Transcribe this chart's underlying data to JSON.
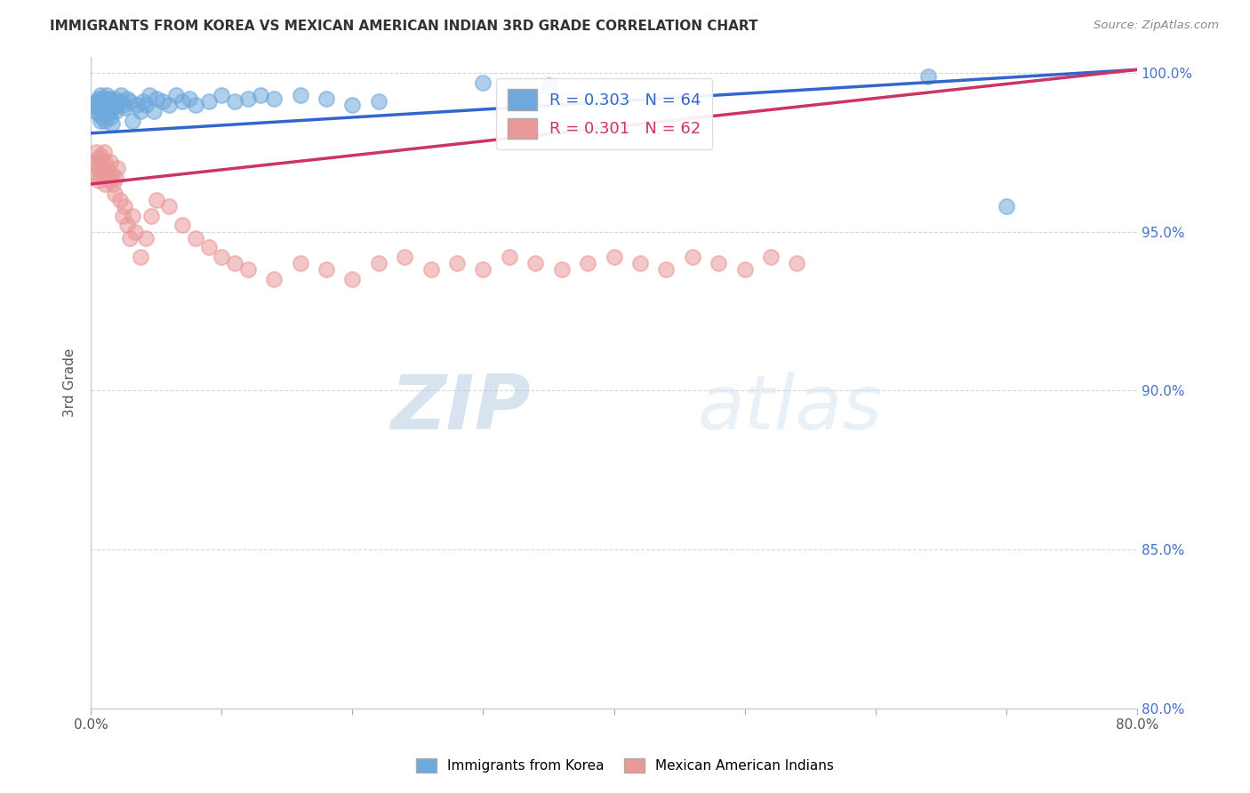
{
  "title": "IMMIGRANTS FROM KOREA VS MEXICAN AMERICAN INDIAN 3RD GRADE CORRELATION CHART",
  "source": "Source: ZipAtlas.com",
  "ylabel": "3rd Grade",
  "x_min": 0.0,
  "x_max": 0.8,
  "y_min": 0.8,
  "y_max": 1.005,
  "x_ticks": [
    0.0,
    0.1,
    0.2,
    0.3,
    0.4,
    0.5,
    0.6,
    0.7,
    0.8
  ],
  "x_tick_labels": [
    "0.0%",
    "",
    "",
    "",
    "",
    "",
    "",
    "",
    "80.0%"
  ],
  "y_ticks": [
    0.8,
    0.85,
    0.9,
    0.95,
    1.0
  ],
  "y_tick_labels": [
    "80.0%",
    "85.0%",
    "90.0%",
    "95.0%",
    "100.0%"
  ],
  "korea_R": 0.303,
  "korea_N": 64,
  "mexican_R": 0.301,
  "mexican_N": 62,
  "korea_color": "#6fa8dc",
  "mexican_color": "#ea9999",
  "korea_line_color": "#3366cc",
  "mexican_line_color": "#cc3366",
  "background_color": "#ffffff",
  "watermark_zip": "ZIP",
  "watermark_atlas": "atlas",
  "korea_line_x0": 0.0,
  "korea_line_y0": 0.981,
  "korea_line_x1": 0.8,
  "korea_line_y1": 1.001,
  "mexican_line_x0": 0.0,
  "mexican_line_y0": 0.965,
  "mexican_line_x1": 0.8,
  "mexican_line_y1": 1.001,
  "korea_x": [
    0.002,
    0.003,
    0.004,
    0.005,
    0.006,
    0.006,
    0.007,
    0.007,
    0.008,
    0.008,
    0.009,
    0.009,
    0.01,
    0.01,
    0.011,
    0.011,
    0.012,
    0.012,
    0.013,
    0.013,
    0.014,
    0.014,
    0.015,
    0.015,
    0.016,
    0.016,
    0.017,
    0.018,
    0.019,
    0.02,
    0.022,
    0.023,
    0.025,
    0.026,
    0.028,
    0.03,
    0.032,
    0.035,
    0.038,
    0.04,
    0.042,
    0.045,
    0.048,
    0.05,
    0.055,
    0.06,
    0.065,
    0.07,
    0.075,
    0.08,
    0.09,
    0.1,
    0.11,
    0.12,
    0.13,
    0.14,
    0.16,
    0.18,
    0.2,
    0.22,
    0.3,
    0.35,
    0.64,
    0.7
  ],
  "korea_y": [
    0.99,
    0.988,
    0.991,
    0.989,
    0.992,
    0.987,
    0.993,
    0.985,
    0.991,
    0.988,
    0.99,
    0.986,
    0.992,
    0.988,
    0.99,
    0.985,
    0.993,
    0.989,
    0.991,
    0.987,
    0.992,
    0.988,
    0.991,
    0.986,
    0.99,
    0.984,
    0.989,
    0.992,
    0.988,
    0.99,
    0.991,
    0.993,
    0.99,
    0.989,
    0.992,
    0.991,
    0.985,
    0.99,
    0.988,
    0.991,
    0.99,
    0.993,
    0.988,
    0.992,
    0.991,
    0.99,
    0.993,
    0.991,
    0.992,
    0.99,
    0.991,
    0.993,
    0.991,
    0.992,
    0.993,
    0.992,
    0.993,
    0.992,
    0.99,
    0.991,
    0.997,
    0.996,
    0.999,
    0.958
  ],
  "mexican_x": [
    0.002,
    0.003,
    0.004,
    0.005,
    0.006,
    0.006,
    0.007,
    0.007,
    0.008,
    0.009,
    0.01,
    0.01,
    0.011,
    0.011,
    0.012,
    0.013,
    0.014,
    0.015,
    0.016,
    0.017,
    0.018,
    0.019,
    0.02,
    0.022,
    0.024,
    0.026,
    0.028,
    0.03,
    0.032,
    0.034,
    0.038,
    0.042,
    0.046,
    0.05,
    0.06,
    0.07,
    0.08,
    0.09,
    0.1,
    0.11,
    0.12,
    0.14,
    0.16,
    0.18,
    0.2,
    0.22,
    0.24,
    0.26,
    0.28,
    0.3,
    0.32,
    0.34,
    0.36,
    0.38,
    0.4,
    0.42,
    0.44,
    0.46,
    0.48,
    0.5,
    0.52,
    0.54
  ],
  "mexican_y": [
    0.972,
    0.968,
    0.975,
    0.97,
    0.973,
    0.966,
    0.974,
    0.968,
    0.972,
    0.97,
    0.975,
    0.968,
    0.972,
    0.965,
    0.97,
    0.968,
    0.966,
    0.972,
    0.968,
    0.965,
    0.962,
    0.967,
    0.97,
    0.96,
    0.955,
    0.958,
    0.952,
    0.948,
    0.955,
    0.95,
    0.942,
    0.948,
    0.955,
    0.96,
    0.958,
    0.952,
    0.948,
    0.945,
    0.942,
    0.94,
    0.938,
    0.935,
    0.94,
    0.938,
    0.935,
    0.94,
    0.942,
    0.938,
    0.94,
    0.938,
    0.942,
    0.94,
    0.938,
    0.94,
    0.942,
    0.94,
    0.938,
    0.942,
    0.94,
    0.938,
    0.942,
    0.94
  ]
}
